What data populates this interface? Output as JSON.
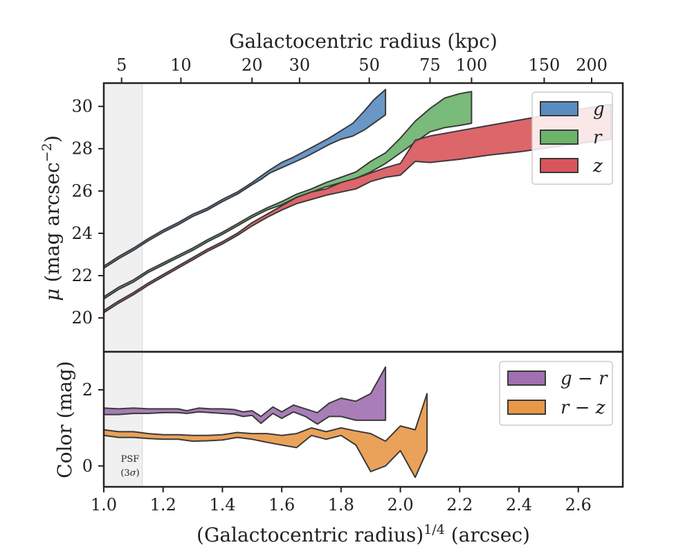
{
  "chart_data": [
    {
      "type": "area",
      "panel": "surface-brightness",
      "top_xlabel": "Galactocentric radius (kpc)",
      "top_ticks": [
        5,
        10,
        20,
        30,
        50,
        75,
        100,
        150,
        200
      ],
      "top_tick_positions": [
        1.06,
        1.26,
        1.5,
        1.66,
        1.895,
        2.1,
        2.24,
        2.485,
        2.645
      ],
      "ylabel_prefix": "μ",
      "ylabel_main": " (mag arcsec",
      "ylabel_sup": "−2",
      "ylabel_suffix": ")",
      "xlim": [
        1.0,
        2.75
      ],
      "ylim": [
        31.1,
        18.4
      ],
      "y_inverted": true,
      "yticks": [
        20,
        22,
        24,
        26,
        28,
        30
      ],
      "legend_position": "top-right",
      "series": [
        {
          "name": "g",
          "color": "#5a8cc0",
          "x": [
            1.0,
            1.05,
            1.1,
            1.15,
            1.2,
            1.25,
            1.3,
            1.35,
            1.4,
            1.45,
            1.5,
            1.53,
            1.56,
            1.6,
            1.64,
            1.68,
            1.72,
            1.76,
            1.8,
            1.84,
            1.88,
            1.91,
            1.95
          ],
          "upper": [
            22.45,
            22.9,
            23.3,
            23.75,
            24.15,
            24.5,
            24.9,
            25.2,
            25.6,
            25.95,
            26.4,
            26.7,
            27.0,
            27.35,
            27.6,
            27.9,
            28.2,
            28.5,
            28.85,
            29.2,
            29.8,
            30.3,
            30.8
          ],
          "lower": [
            22.35,
            22.8,
            23.2,
            23.65,
            24.05,
            24.4,
            24.8,
            25.1,
            25.5,
            25.85,
            26.3,
            26.55,
            26.85,
            27.1,
            27.35,
            27.6,
            27.9,
            28.2,
            28.45,
            28.6,
            28.9,
            29.2,
            29.6
          ]
        },
        {
          "name": "r",
          "color": "#6cb36c",
          "x": [
            1.0,
            1.05,
            1.1,
            1.15,
            1.2,
            1.25,
            1.3,
            1.35,
            1.4,
            1.45,
            1.5,
            1.55,
            1.6,
            1.65,
            1.7,
            1.75,
            1.8,
            1.85,
            1.9,
            1.95,
            2.0,
            2.05,
            2.1,
            2.15,
            2.2,
            2.24
          ],
          "upper": [
            21.0,
            21.45,
            21.8,
            22.25,
            22.6,
            22.95,
            23.3,
            23.7,
            24.05,
            24.45,
            24.85,
            25.2,
            25.5,
            25.85,
            26.1,
            26.4,
            26.65,
            26.9,
            27.4,
            27.8,
            28.5,
            29.3,
            29.9,
            30.4,
            30.6,
            30.7
          ],
          "lower": [
            20.9,
            21.35,
            21.7,
            22.15,
            22.5,
            22.85,
            23.2,
            23.6,
            23.95,
            24.35,
            24.75,
            25.1,
            25.35,
            25.7,
            25.95,
            26.2,
            26.4,
            26.6,
            26.9,
            27.3,
            27.8,
            28.3,
            28.8,
            29.0,
            29.1,
            29.2
          ]
        },
        {
          "name": "z",
          "color": "#d9555b",
          "x": [
            1.0,
            1.05,
            1.1,
            1.15,
            1.2,
            1.25,
            1.3,
            1.35,
            1.4,
            1.45,
            1.5,
            1.55,
            1.6,
            1.65,
            1.7,
            1.75,
            1.8,
            1.85,
            1.9,
            1.95,
            2.0,
            2.05,
            2.1,
            2.2,
            2.3,
            2.4,
            2.5,
            2.6,
            2.71
          ],
          "upper": [
            20.35,
            20.8,
            21.2,
            21.65,
            22.05,
            22.45,
            22.85,
            23.25,
            23.6,
            24.0,
            24.5,
            24.9,
            25.3,
            25.7,
            25.95,
            26.1,
            26.4,
            26.6,
            26.85,
            27.1,
            27.3,
            28.4,
            28.6,
            28.85,
            29.1,
            29.35,
            29.6,
            29.85,
            30.1
          ],
          "lower": [
            20.25,
            20.7,
            21.1,
            21.55,
            21.95,
            22.35,
            22.75,
            23.15,
            23.5,
            23.9,
            24.35,
            24.75,
            25.1,
            25.4,
            25.6,
            25.8,
            25.95,
            26.1,
            26.45,
            26.65,
            26.75,
            27.4,
            27.35,
            27.5,
            27.7,
            27.85,
            28.05,
            28.25,
            28.45
          ]
        }
      ],
      "shaded_region": {
        "x": [
          1.0,
          1.13
        ]
      }
    },
    {
      "type": "area",
      "panel": "color",
      "xlabel_main": "(Galactocentric radius)",
      "xlabel_sup": "1/4",
      "xlabel_suffix": " (arcsec)",
      "ylabel": "Color (mag)",
      "xlim": [
        1.0,
        2.75
      ],
      "ylim": [
        -0.55,
        3.0
      ],
      "xticks": [
        1.0,
        1.2,
        1.4,
        1.6,
        1.8,
        2.0,
        2.2,
        2.4,
        2.6
      ],
      "xtick_labels": [
        "1.0",
        "1.2",
        "1.4",
        "1.6",
        "1.8",
        "2.0",
        "2.2",
        "2.4",
        "2.6"
      ],
      "yticks": [
        0,
        2
      ],
      "legend_position": "top-right",
      "annotation": {
        "line1": "PSF",
        "line2_prefix": "(3",
        "line2_sigma": "σ",
        "line2_suffix": ")"
      },
      "series": [
        {
          "name": "g − r",
          "name_parts": [
            "g",
            " − ",
            "r"
          ],
          "color": "#a070b0",
          "x": [
            1.0,
            1.05,
            1.1,
            1.15,
            1.2,
            1.25,
            1.28,
            1.32,
            1.36,
            1.4,
            1.44,
            1.47,
            1.5,
            1.53,
            1.57,
            1.6,
            1.64,
            1.68,
            1.72,
            1.76,
            1.8,
            1.85,
            1.9,
            1.95
          ],
          "upper": [
            1.52,
            1.5,
            1.52,
            1.5,
            1.5,
            1.5,
            1.45,
            1.52,
            1.5,
            1.5,
            1.48,
            1.42,
            1.45,
            1.3,
            1.55,
            1.42,
            1.6,
            1.5,
            1.4,
            1.65,
            1.78,
            1.7,
            1.9,
            2.6
          ],
          "lower": [
            1.35,
            1.35,
            1.38,
            1.38,
            1.4,
            1.4,
            1.38,
            1.42,
            1.4,
            1.38,
            1.36,
            1.3,
            1.33,
            1.12,
            1.38,
            1.25,
            1.42,
            1.3,
            1.1,
            1.3,
            1.3,
            1.2,
            1.2,
            1.2
          ]
        },
        {
          "name": "r − z",
          "name_parts": [
            "r",
            " − ",
            "z"
          ],
          "color": "#e89848",
          "x": [
            1.0,
            1.05,
            1.1,
            1.15,
            1.2,
            1.25,
            1.3,
            1.35,
            1.4,
            1.45,
            1.5,
            1.55,
            1.6,
            1.65,
            1.7,
            1.75,
            1.8,
            1.85,
            1.9,
            1.95,
            2.0,
            2.05,
            2.09
          ],
          "upper": [
            0.95,
            0.9,
            0.9,
            0.85,
            0.82,
            0.82,
            0.8,
            0.8,
            0.82,
            0.88,
            0.85,
            0.85,
            0.8,
            0.85,
            1.0,
            0.9,
            1.0,
            0.92,
            0.85,
            0.65,
            1.05,
            0.95,
            1.9
          ],
          "lower": [
            0.8,
            0.75,
            0.75,
            0.72,
            0.7,
            0.7,
            0.65,
            0.66,
            0.68,
            0.75,
            0.7,
            0.62,
            0.55,
            0.48,
            0.8,
            0.7,
            0.8,
            0.55,
            -0.15,
            0.0,
            0.4,
            -0.3,
            0.4
          ]
        }
      ],
      "shaded_region": {
        "x": [
          1.0,
          1.13
        ]
      }
    }
  ]
}
